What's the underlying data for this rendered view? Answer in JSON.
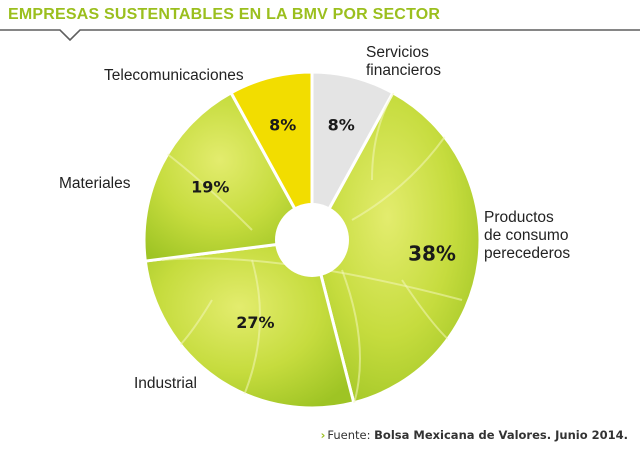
{
  "header": {
    "title": "EMPRESAS SUSTENTABLES EN LA BMV POR SECTOR"
  },
  "chart_data": {
    "type": "pie",
    "title": "EMPRESAS SUSTENTABLES EN LA BMV POR SECTOR",
    "donut": true,
    "unit": "%",
    "categories": [
      "Servicios financieros",
      "Productos de consumo perecederos",
      "Industrial",
      "Materiales",
      "Telecomunicaciones"
    ],
    "values": [
      8,
      38,
      27,
      19,
      8
    ],
    "value_labels": [
      "8%",
      "38%",
      "27%",
      "19%",
      "8%"
    ],
    "label_lines": [
      [
        "Servicios",
        "financieros"
      ],
      [
        "Productos",
        "de consumo",
        "perecederos"
      ],
      [
        "Industrial"
      ],
      [
        "Materiales"
      ],
      [
        "Telecomunicaciones"
      ]
    ],
    "colors": [
      "#e4e4e4",
      "#a8cc2c",
      "#bcd63a",
      "#d2e23c",
      "#f2dd00"
    ],
    "legend": "none"
  },
  "source": {
    "label": "Fuente:",
    "value": "Bolsa Mexicana de Valores. Junio 2014."
  },
  "colors": {
    "accent": "#9bbf1e",
    "leaf_light": "#dfe96a",
    "leaf_dark": "#8fb81e",
    "telecom_yellow": "#f2dd00",
    "financial_gray": "#e4e4e4"
  }
}
